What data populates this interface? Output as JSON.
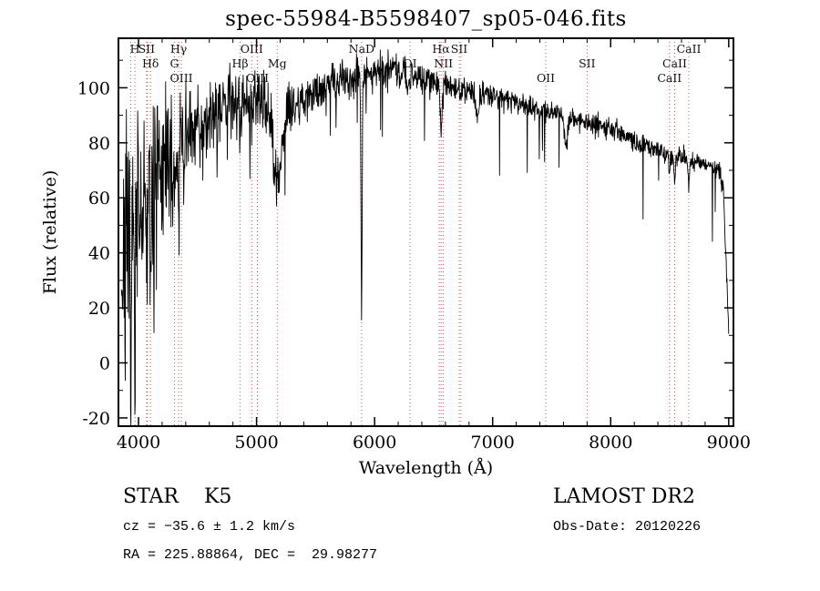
{
  "chart_data": {
    "type": "line",
    "title": "spec-55984-B5598407_sp05-046.fits",
    "xlabel": "Wavelength (Å)",
    "ylabel": "Flux (relative)",
    "xlim": [
      3830,
      9040
    ],
    "ylim": [
      -23,
      118
    ],
    "xticks": [
      4000,
      5000,
      6000,
      7000,
      8000,
      9000
    ],
    "yticks": [
      -20,
      0,
      20,
      40,
      60,
      80,
      100
    ],
    "x_minor_step": 200,
    "y_minor_step": 10,
    "grid": false,
    "legend": false,
    "line_color": "#000000",
    "marker_line_color": "#cc5555",
    "marker_label_color": "#111111",
    "spectral_lines": [
      {
        "wl": 3934,
        "label": "",
        "row": 0
      },
      {
        "wl": 3970,
        "label": "H",
        "row": 1
      },
      {
        "wl": 4068,
        "label": "SII",
        "row": 1
      },
      {
        "wl": 4076,
        "label": "",
        "row": 0
      },
      {
        "wl": 4102,
        "label": "Hδ",
        "row": 2
      },
      {
        "wl": 4305,
        "label": "G",
        "row": 2
      },
      {
        "wl": 4340,
        "label": "Hγ",
        "row": 1
      },
      {
        "wl": 4363,
        "label": "OIII",
        "row": 3
      },
      {
        "wl": 4861,
        "label": "Hβ",
        "row": 2
      },
      {
        "wl": 4959,
        "label": "OIII",
        "row": 1
      },
      {
        "wl": 5007,
        "label": "OIII",
        "row": 3
      },
      {
        "wl": 5175,
        "label": "Mg",
        "row": 2
      },
      {
        "wl": 5890,
        "label": "NaD",
        "row": 1
      },
      {
        "wl": 6300,
        "label": "OI",
        "row": 2
      },
      {
        "wl": 6548,
        "label": "",
        "row": 0
      },
      {
        "wl": 6563,
        "label": "Hα",
        "row": 1
      },
      {
        "wl": 6583,
        "label": "NII",
        "row": 2
      },
      {
        "wl": 6717,
        "label": "SII",
        "row": 1
      },
      {
        "wl": 6731,
        "label": "",
        "row": 0
      },
      {
        "wl": 7450,
        "label": "OII",
        "row": 3
      },
      {
        "wl": 7800,
        "label": "SII",
        "row": 2
      },
      {
        "wl": 8498,
        "label": "CaII",
        "row": 3
      },
      {
        "wl": 8542,
        "label": "CaII",
        "row": 2
      },
      {
        "wl": 8662,
        "label": "CaII",
        "row": 1
      }
    ],
    "spectrum": {
      "seed": 7,
      "x_start": 3855,
      "x_end": 9000,
      "step": 3,
      "continuum": [
        [
          3855,
          35
        ],
        [
          3900,
          45
        ],
        [
          3950,
          50
        ],
        [
          4000,
          55
        ],
        [
          4050,
          60
        ],
        [
          4100,
          63
        ],
        [
          4150,
          66
        ],
        [
          4200,
          70
        ],
        [
          4300,
          76
        ],
        [
          4400,
          82
        ],
        [
          4500,
          86
        ],
        [
          4600,
          90
        ],
        [
          4700,
          94
        ],
        [
          4800,
          96
        ],
        [
          4900,
          97
        ],
        [
          5000,
          96
        ],
        [
          5100,
          94
        ],
        [
          5300,
          93
        ],
        [
          5500,
          99
        ],
        [
          5700,
          103
        ],
        [
          5900,
          104
        ],
        [
          6000,
          106
        ],
        [
          6150,
          107
        ],
        [
          6300,
          105
        ],
        [
          6450,
          103
        ],
        [
          6600,
          101
        ],
        [
          6800,
          99
        ],
        [
          7000,
          97
        ],
        [
          7200,
          95
        ],
        [
          7400,
          92
        ],
        [
          7600,
          90
        ],
        [
          7800,
          87
        ],
        [
          8000,
          85
        ],
        [
          8200,
          81
        ],
        [
          8350,
          78
        ],
        [
          8500,
          76
        ],
        [
          8650,
          74
        ],
        [
          8800,
          72
        ],
        [
          8920,
          70
        ],
        [
          8955,
          62
        ],
        [
          8980,
          35
        ],
        [
          9000,
          12
        ]
      ],
      "noise_amplitude": [
        [
          3855,
          30
        ],
        [
          3900,
          32
        ],
        [
          3950,
          30
        ],
        [
          4000,
          28
        ],
        [
          4100,
          24
        ],
        [
          4200,
          20
        ],
        [
          4300,
          16
        ],
        [
          4400,
          14
        ],
        [
          4600,
          12
        ],
        [
          4800,
          10
        ],
        [
          5000,
          9
        ],
        [
          5200,
          8
        ],
        [
          5400,
          7
        ],
        [
          5600,
          6
        ],
        [
          5800,
          5.5
        ],
        [
          6000,
          5
        ],
        [
          6300,
          4.5
        ],
        [
          6600,
          4
        ],
        [
          7000,
          3.5
        ],
        [
          7500,
          3
        ],
        [
          8000,
          3
        ],
        [
          8500,
          3
        ],
        [
          9000,
          2.5
        ]
      ],
      "absorption_lines": [
        [
          3934,
          45,
          7
        ],
        [
          3970,
          45,
          7
        ],
        [
          4068,
          18,
          5
        ],
        [
          4102,
          22,
          6
        ],
        [
          4305,
          16,
          9
        ],
        [
          4340,
          20,
          6
        ],
        [
          4383,
          12,
          5
        ],
        [
          4861,
          14,
          6
        ],
        [
          5175,
          26,
          38
        ],
        [
          5890,
          86,
          5
        ],
        [
          6280,
          8,
          8
        ],
        [
          6563,
          16,
          7
        ],
        [
          6870,
          10,
          12
        ],
        [
          7620,
          10,
          14
        ],
        [
          8498,
          9,
          5
        ],
        [
          8542,
          11,
          5
        ],
        [
          8662,
          11,
          5
        ]
      ]
    },
    "annotations": {
      "class_label": "STAR    K5",
      "survey": "LAMOST DR2",
      "cz": "cz = −35.6 ± 1.2 km/s",
      "obs_date": "Obs-Date: 20120226",
      "ra_dec": "RA = 225.88864, DEC =  29.98277"
    }
  }
}
